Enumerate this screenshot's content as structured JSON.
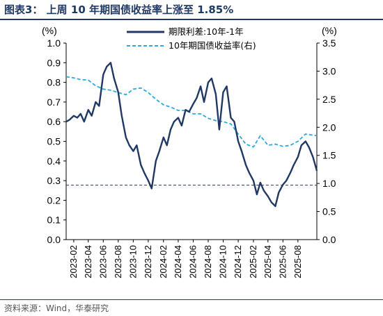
{
  "figure_title": "图表3：  上周 10 年期国债收益率上涨至 1.85%",
  "source_note": "资料来源：Wind，华泰研究",
  "chart_data": {
    "type": "line",
    "left_axis": {
      "unit_label": "(%)",
      "range": [
        0,
        1.0
      ],
      "ticks": [
        "0.0",
        "0.1",
        "0.2",
        "0.3",
        "0.4",
        "0.5",
        "0.6",
        "0.7",
        "0.8",
        "0.9",
        "1.0"
      ]
    },
    "right_axis": {
      "unit_label": "(%)",
      "range": [
        0,
        3.5
      ],
      "ticks": [
        "0.0",
        "0.5",
        "1.0",
        "1.5",
        "2.0",
        "2.5",
        "3.0",
        "3.5"
      ]
    },
    "x_ticks": [
      "2023-02",
      "2023-04",
      "2023-06",
      "2023-08",
      "2023-10",
      "2023-12",
      "2024-02",
      "2024-04",
      "2024-06",
      "2024-08",
      "2024-10",
      "2024-12",
      "2025-02",
      "2025-04",
      "2025-06",
      "2025-08"
    ],
    "x_range": [
      "2023-01-01",
      "2025-10-17"
    ],
    "reference_line": {
      "axis": "right",
      "value": 0.97,
      "style": "dashed",
      "color": "#1f3864"
    },
    "grid": false,
    "legend_position": "top",
    "series": [
      {
        "name": "期限利差:10年-1年",
        "axis": "left",
        "color": "#1f3864",
        "style": "solid",
        "x": [
          "2023-01-01",
          "2023-01-15",
          "2023-02-01",
          "2023-02-15",
          "2023-03-01",
          "2023-03-15",
          "2023-04-01",
          "2023-04-15",
          "2023-05-01",
          "2023-05-15",
          "2023-06-01",
          "2023-06-15",
          "2023-07-01",
          "2023-07-15",
          "2023-08-01",
          "2023-08-15",
          "2023-09-01",
          "2023-09-15",
          "2023-10-01",
          "2023-10-15",
          "2023-11-01",
          "2023-11-15",
          "2023-12-01",
          "2023-12-15",
          "2024-01-01",
          "2024-01-15",
          "2024-02-01",
          "2024-02-15",
          "2024-03-01",
          "2024-03-15",
          "2024-04-01",
          "2024-04-15",
          "2024-05-01",
          "2024-05-15",
          "2024-06-01",
          "2024-06-15",
          "2024-07-01",
          "2024-07-15",
          "2024-08-01",
          "2024-08-15",
          "2024-09-01",
          "2024-09-15",
          "2024-10-01",
          "2024-10-15",
          "2024-11-01",
          "2024-11-15",
          "2024-12-01",
          "2024-12-15",
          "2025-01-01",
          "2025-01-15",
          "2025-02-01",
          "2025-02-15",
          "2025-03-01",
          "2025-03-15",
          "2025-04-01",
          "2025-04-15",
          "2025-05-01",
          "2025-05-15",
          "2025-06-01",
          "2025-06-15",
          "2025-07-01",
          "2025-07-15",
          "2025-08-01",
          "2025-08-15",
          "2025-09-01",
          "2025-09-15",
          "2025-10-01",
          "2025-10-17"
        ],
        "values": [
          0.6,
          0.61,
          0.63,
          0.62,
          0.64,
          0.6,
          0.66,
          0.63,
          0.7,
          0.68,
          0.84,
          0.88,
          0.9,
          0.82,
          0.75,
          0.63,
          0.52,
          0.48,
          0.45,
          0.48,
          0.38,
          0.34,
          0.3,
          0.26,
          0.4,
          0.45,
          0.52,
          0.48,
          0.56,
          0.6,
          0.62,
          0.58,
          0.66,
          0.65,
          0.69,
          0.72,
          0.78,
          0.7,
          0.8,
          0.82,
          0.74,
          0.56,
          0.75,
          0.78,
          0.62,
          0.6,
          0.5,
          0.45,
          0.38,
          0.34,
          0.3,
          0.23,
          0.29,
          0.25,
          0.22,
          0.19,
          0.17,
          0.24,
          0.28,
          0.3,
          0.34,
          0.38,
          0.42,
          0.48,
          0.5,
          0.47,
          0.42,
          0.35
        ]
      },
      {
        "name": "10年期国债收益率(右)",
        "axis": "right",
        "color": "#2ea8e0",
        "style": "dashed",
        "x": [
          "2023-01-01",
          "2023-02-01",
          "2023-03-01",
          "2023-04-01",
          "2023-05-01",
          "2023-06-01",
          "2023-07-01",
          "2023-08-01",
          "2023-09-01",
          "2023-10-01",
          "2023-11-01",
          "2023-12-01",
          "2024-01-01",
          "2024-02-01",
          "2024-03-01",
          "2024-04-01",
          "2024-05-01",
          "2024-06-01",
          "2024-07-01",
          "2024-08-01",
          "2024-09-01",
          "2024-10-01",
          "2024-11-01",
          "2024-12-01",
          "2025-01-01",
          "2025-02-01",
          "2025-03-01",
          "2025-04-01",
          "2025-05-01",
          "2025-06-01",
          "2025-07-01",
          "2025-08-01",
          "2025-09-01",
          "2025-10-01",
          "2025-10-17"
        ],
        "values": [
          2.9,
          2.88,
          2.85,
          2.84,
          2.74,
          2.68,
          2.66,
          2.62,
          2.58,
          2.68,
          2.7,
          2.62,
          2.5,
          2.4,
          2.36,
          2.3,
          2.3,
          2.24,
          2.24,
          2.16,
          2.12,
          2.1,
          2.06,
          1.88,
          1.7,
          1.65,
          1.85,
          1.68,
          1.7,
          1.66,
          1.68,
          1.75,
          1.88,
          1.86,
          1.85
        ]
      }
    ]
  }
}
